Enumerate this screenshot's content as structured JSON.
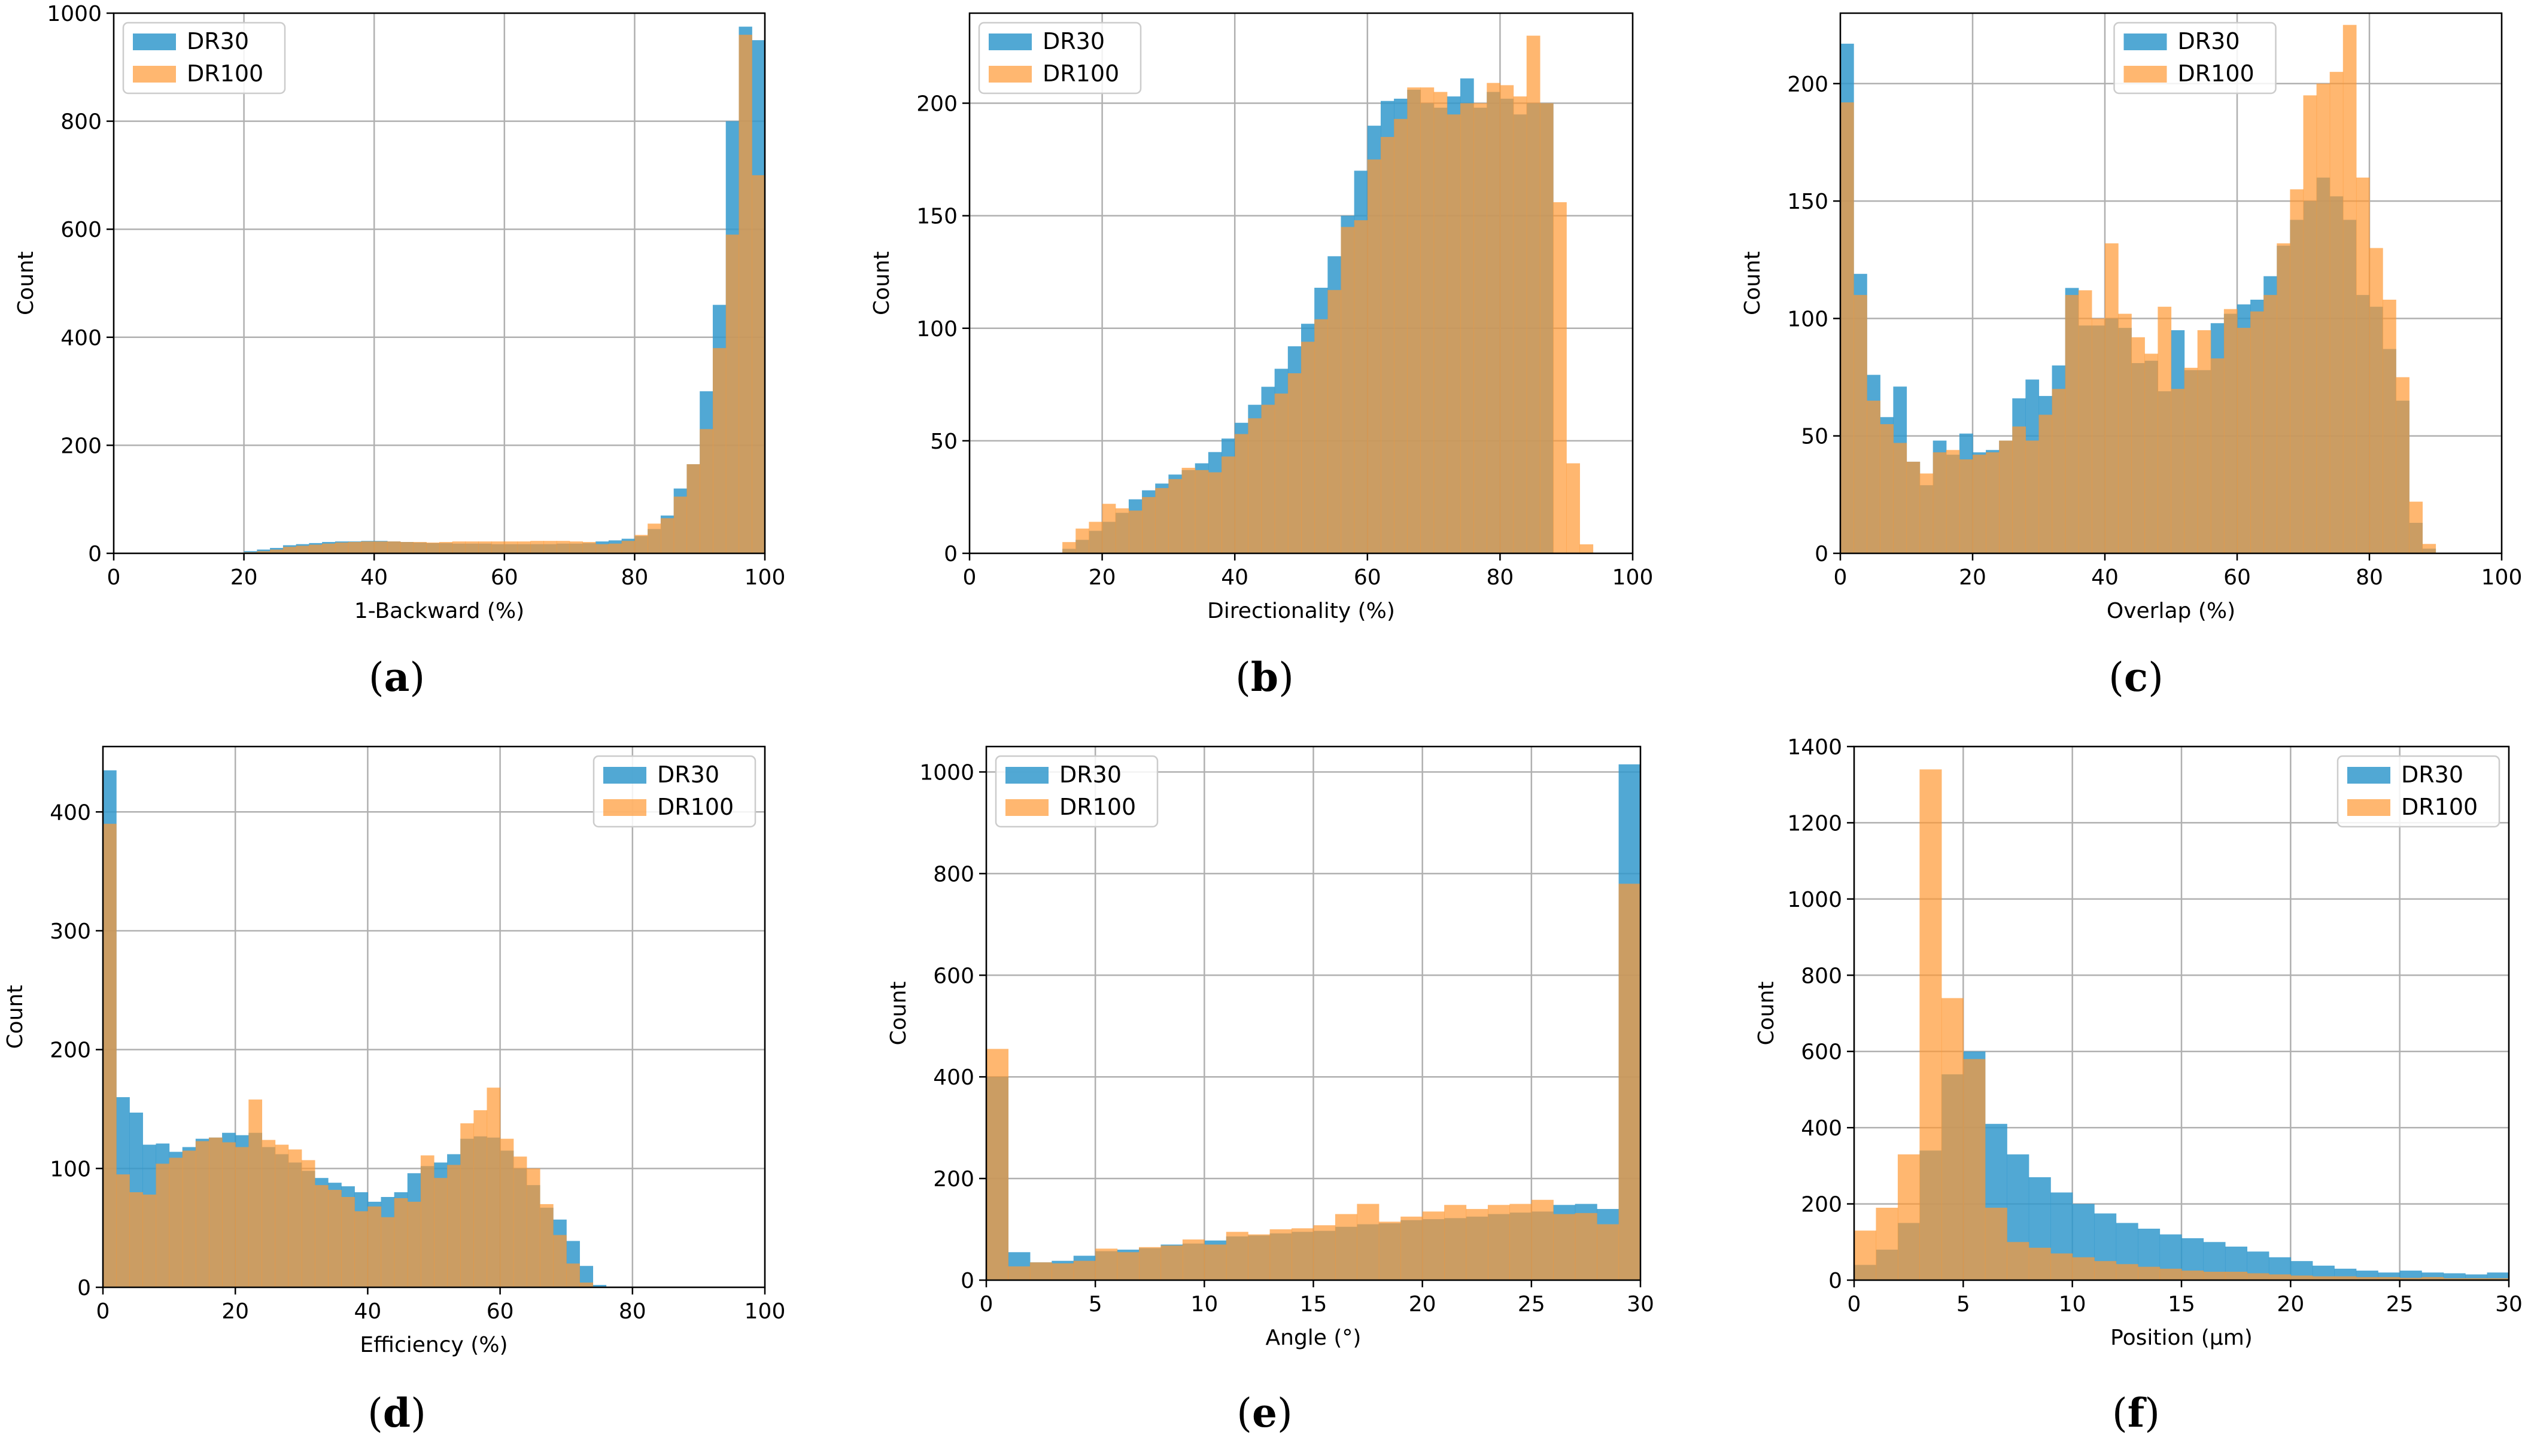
{
  "colors": {
    "DR30": "#3399cc",
    "DR100": "#ff9933",
    "grid": "#b0b0b0",
    "axis": "#000000"
  },
  "chart_data": [
    {
      "panel": "(a)",
      "panel_letter": "a",
      "type": "bar",
      "xlabel": "1-Backward (%)",
      "ylabel": "Count",
      "xlim": [
        0,
        100
      ],
      "ylim": [
        0,
        1000
      ],
      "xticks": [
        0,
        20,
        40,
        60,
        80,
        100
      ],
      "yticks": [
        0,
        200,
        400,
        600,
        800,
        1000
      ],
      "legend_loc": "upper-left",
      "bin_start": 0,
      "bin_width": 2,
      "series": [
        {
          "name": "DR30",
          "values": [
            0,
            0,
            0,
            0,
            0,
            0,
            0,
            0,
            0,
            0,
            4,
            7,
            10,
            15,
            17,
            19,
            21,
            22,
            22,
            23,
            23,
            22,
            21,
            20,
            19,
            19,
            18,
            18,
            18,
            17,
            17,
            17,
            17,
            17,
            18,
            18,
            19,
            22,
            24,
            27,
            32,
            45,
            70,
            120,
            165,
            300,
            460,
            800,
            975,
            950
          ]
        },
        {
          "name": "DR100",
          "values": [
            0,
            0,
            0,
            0,
            0,
            0,
            0,
            0,
            0,
            0,
            2,
            4,
            7,
            12,
            14,
            16,
            18,
            20,
            21,
            22,
            22,
            22,
            21,
            21,
            20,
            21,
            22,
            22,
            22,
            22,
            22,
            22,
            23,
            23,
            23,
            22,
            21,
            17,
            18,
            23,
            34,
            55,
            65,
            105,
            165,
            230,
            380,
            590,
            960,
            700
          ]
        }
      ]
    },
    {
      "panel": "(b)",
      "panel_letter": "b",
      "type": "bar",
      "xlabel": "Directionality (%)",
      "ylabel": "Count",
      "xlim": [
        0,
        100
      ],
      "ylim": [
        0,
        240
      ],
      "xticks": [
        0,
        20,
        40,
        60,
        80,
        100
      ],
      "yticks": [
        0,
        50,
        100,
        150,
        200
      ],
      "legend_loc": "upper-left",
      "bin_start": 0,
      "bin_width": 2,
      "series": [
        {
          "name": "DR30",
          "values": [
            0,
            0,
            0,
            0,
            0,
            0,
            0,
            2,
            6,
            10,
            14,
            18,
            24,
            28,
            31,
            35,
            37,
            40,
            45,
            51,
            58,
            66,
            74,
            82,
            92,
            102,
            118,
            132,
            150,
            170,
            190,
            201,
            202,
            206,
            200,
            198,
            203,
            211,
            198,
            205,
            202,
            195,
            200,
            200,
            0,
            0,
            0,
            0,
            0,
            0
          ]
        },
        {
          "name": "DR100",
          "values": [
            0,
            0,
            0,
            0,
            0,
            0,
            0,
            5,
            11,
            14,
            22,
            20,
            19,
            25,
            29,
            33,
            38,
            37,
            36,
            43,
            53,
            60,
            66,
            71,
            80,
            94,
            104,
            117,
            145,
            148,
            175,
            185,
            193,
            207,
            207,
            205,
            195,
            200,
            200,
            209,
            208,
            203,
            230,
            200,
            156,
            40,
            4,
            0,
            0,
            0
          ]
        }
      ]
    },
    {
      "panel": "(c)",
      "panel_letter": "c",
      "type": "bar",
      "xlabel": "Overlap (%)",
      "ylabel": "Count",
      "xlim": [
        0,
        100
      ],
      "ylim": [
        0,
        230
      ],
      "xticks": [
        0,
        20,
        40,
        60,
        80,
        100
      ],
      "yticks": [
        0,
        50,
        100,
        150,
        200
      ],
      "legend_loc": "upper-center",
      "bin_start": 0,
      "bin_width": 2,
      "series": [
        {
          "name": "DR30",
          "values": [
            217,
            119,
            76,
            58,
            71,
            39,
            29,
            48,
            42,
            51,
            43,
            44,
            48,
            66,
            74,
            67,
            80,
            113,
            97,
            97,
            100,
            96,
            81,
            82,
            69,
            95,
            78,
            78,
            98,
            102,
            106,
            108,
            118,
            131,
            142,
            150,
            160,
            152,
            142,
            110,
            105,
            87,
            65,
            13,
            2,
            0,
            0,
            0,
            0,
            0
          ]
        },
        {
          "name": "DR100",
          "values": [
            192,
            110,
            65,
            55,
            47,
            39,
            34,
            43,
            44,
            40,
            42,
            43,
            48,
            54,
            48,
            59,
            70,
            110,
            112,
            100,
            132,
            102,
            92,
            85,
            105,
            70,
            79,
            95,
            83,
            104,
            96,
            103,
            110,
            132,
            155,
            195,
            200,
            205,
            225,
            160,
            130,
            108,
            75,
            22,
            4,
            0,
            0,
            0,
            0,
            0
          ]
        }
      ]
    },
    {
      "panel": "(d)",
      "panel_letter": "d",
      "type": "bar",
      "xlabel": "Efficiency (%)",
      "ylabel": "Count",
      "xlim": [
        0,
        100
      ],
      "ylim": [
        0,
        455
      ],
      "xticks": [
        0,
        20,
        40,
        60,
        80,
        100
      ],
      "yticks": [
        0,
        100,
        200,
        300,
        400
      ],
      "legend_loc": "upper-right",
      "bin_start": 0,
      "bin_width": 2,
      "series": [
        {
          "name": "DR30",
          "values": [
            435,
            160,
            147,
            120,
            121,
            114,
            118,
            125,
            126,
            130,
            128,
            130,
            118,
            112,
            105,
            98,
            92,
            88,
            85,
            80,
            72,
            76,
            80,
            96,
            102,
            105,
            112,
            125,
            127,
            126,
            115,
            100,
            86,
            67,
            57,
            39,
            18,
            2,
            0,
            0,
            0,
            0,
            0,
            0,
            0,
            0,
            0,
            0,
            0,
            0
          ]
        },
        {
          "name": "DR100",
          "values": [
            390,
            95,
            80,
            78,
            104,
            109,
            115,
            123,
            126,
            122,
            118,
            158,
            124,
            120,
            116,
            107,
            86,
            82,
            76,
            64,
            68,
            59,
            75,
            72,
            111,
            92,
            103,
            138,
            149,
            168,
            125,
            110,
            100,
            70,
            44,
            20,
            4,
            0,
            0,
            0,
            0,
            0,
            0,
            0,
            0,
            0,
            0,
            0,
            0,
            0
          ]
        }
      ]
    },
    {
      "panel": "(e)",
      "panel_letter": "e",
      "type": "bar",
      "xlabel": "Angle (°)",
      "ylabel": "Count",
      "xlim": [
        0,
        30
      ],
      "ylim": [
        0,
        1050
      ],
      "xticks": [
        0,
        5,
        10,
        15,
        20,
        25,
        30
      ],
      "yticks": [
        0,
        200,
        400,
        600,
        800,
        1000
      ],
      "legend_loc": "upper-left",
      "bin_start": 0,
      "bin_width": 1,
      "series": [
        {
          "name": "DR30",
          "values": [
            400,
            55,
            35,
            38,
            48,
            57,
            60,
            63,
            70,
            72,
            78,
            86,
            88,
            92,
            95,
            97,
            105,
            110,
            112,
            118,
            120,
            122,
            125,
            130,
            133,
            135,
            148,
            150,
            140,
            1015
          ]
        },
        {
          "name": "DR100",
          "values": [
            455,
            27,
            35,
            33,
            38,
            62,
            55,
            65,
            68,
            80,
            70,
            95,
            90,
            100,
            102,
            108,
            130,
            150,
            115,
            125,
            135,
            148,
            140,
            148,
            150,
            158,
            130,
            132,
            110,
            780
          ]
        }
      ]
    },
    {
      "panel": "(f)",
      "panel_letter": "f",
      "type": "bar",
      "xlabel": "Position (μm)",
      "ylabel": "Count",
      "xlim": [
        0,
        30
      ],
      "ylim": [
        0,
        1400
      ],
      "xticks": [
        0,
        5,
        10,
        15,
        20,
        25,
        30
      ],
      "yticks": [
        0,
        200,
        400,
        600,
        800,
        1000,
        1200,
        1400
      ],
      "legend_loc": "upper-right",
      "bin_start": 0,
      "bin_width": 1,
      "series": [
        {
          "name": "DR30",
          "values": [
            40,
            80,
            150,
            340,
            540,
            600,
            410,
            330,
            270,
            230,
            200,
            175,
            150,
            135,
            120,
            110,
            100,
            88,
            75,
            60,
            50,
            38,
            30,
            25,
            20,
            25,
            20,
            18,
            15,
            20
          ]
        },
        {
          "name": "DR100",
          "values": [
            130,
            190,
            330,
            1340,
            740,
            580,
            190,
            100,
            85,
            70,
            60,
            50,
            42,
            35,
            30,
            25,
            22,
            22,
            18,
            15,
            12,
            10,
            10,
            8,
            8,
            6,
            8,
            5,
            5,
            5
          ]
        }
      ]
    }
  ]
}
